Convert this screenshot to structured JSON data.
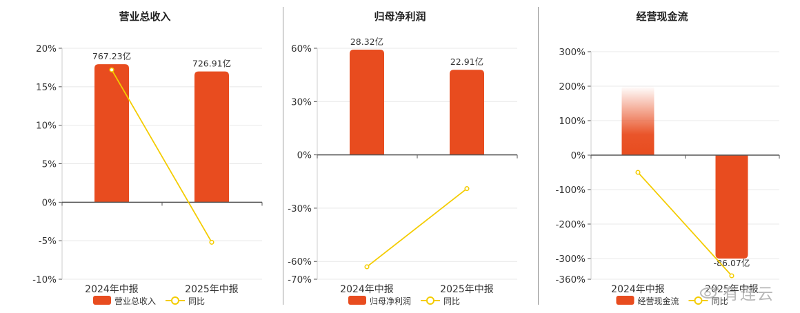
{
  "colors": {
    "bar": "#e84c1f",
    "line": "#f4cc00",
    "axis": "#555555",
    "grid": "#e8e8e8",
    "text": "#333333"
  },
  "watermark": {
    "text": "有连云"
  },
  "chart_data": [
    {
      "type": "bar",
      "title": "营业总收入",
      "categories": [
        "2024年中报",
        "2025年中报"
      ],
      "bar_series": {
        "name": "营业总收入",
        "values": [
          767.23,
          726.91
        ],
        "labels": [
          "767.23亿",
          "726.91亿"
        ]
      },
      "line_series": {
        "name": "同比",
        "values": [
          17.2,
          -5.2
        ]
      },
      "y_ticks": [
        "20%",
        "15%",
        "10%",
        "5%",
        "0%",
        "-5%",
        "-10%"
      ],
      "ylim": [
        -10,
        20
      ],
      "bar_scale_max": 856
    },
    {
      "type": "bar",
      "title": "归母净利润",
      "categories": [
        "2024年中报",
        "2025年中报"
      ],
      "bar_series": {
        "name": "归母净利润",
        "values": [
          28.32,
          22.91
        ],
        "labels": [
          "28.32亿",
          "22.91亿"
        ]
      },
      "line_series": {
        "name": "同比",
        "values": [
          -63,
          -19
        ]
      },
      "y_ticks": [
        "60%",
        "30%",
        "0%",
        "-30%",
        "-60%",
        "-70%"
      ],
      "ylim": [
        -70,
        60
      ],
      "bar_scale_max": 28.7
    },
    {
      "type": "bar",
      "title": "经营现金流",
      "categories": [
        "2024年中报",
        "2025年中报"
      ],
      "bar_series": {
        "name": "经营现金流",
        "values": [
          null,
          -86.07
        ],
        "labels": [
          "",
          "-86.07亿"
        ]
      },
      "line_series": {
        "name": "同比",
        "values": [
          -50,
          -350
        ]
      },
      "y_ticks": [
        "300%",
        "200%",
        "100%",
        "0%",
        "-100%",
        "-200%",
        "-300%",
        "-360%"
      ],
      "ylim": [
        -360,
        300
      ],
      "bar_scale_max": 86.07
    }
  ]
}
